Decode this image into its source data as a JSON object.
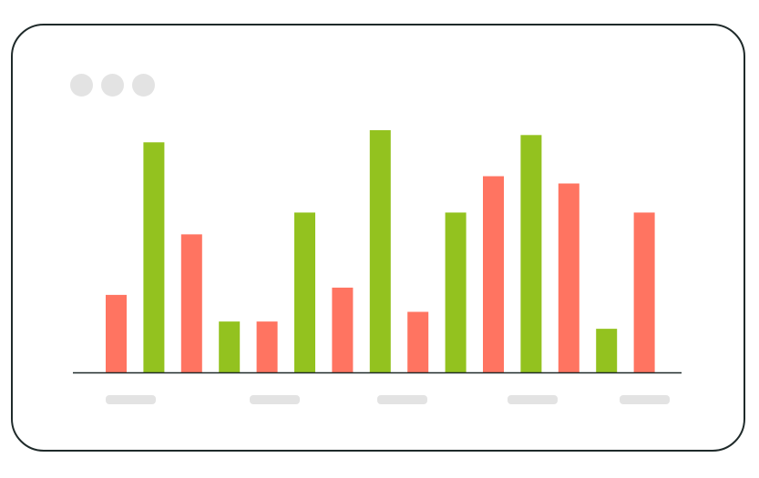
{
  "window": {
    "controls": [
      "dot",
      "dot",
      "dot"
    ]
  },
  "chart_data": {
    "type": "bar",
    "title": "",
    "xlabel": "",
    "ylabel": "",
    "ylim": [
      0,
      100
    ],
    "grid": false,
    "categories": [
      "",
      "",
      "",
      "",
      "",
      "",
      "",
      "",
      "",
      "",
      "",
      "",
      "",
      "",
      ""
    ],
    "values": [
      32,
      95,
      57,
      21,
      21,
      66,
      35,
      100,
      25,
      66,
      81,
      98,
      78,
      18,
      66
    ],
    "bar_colors": [
      "#FF7461",
      "#93C21F",
      "#FF7461",
      "#93C21F",
      "#FF7461",
      "#93C21F",
      "#FF7461",
      "#93C21F",
      "#FF7461",
      "#93C21F",
      "#FF7461",
      "#93C21F",
      "#FF7461",
      "#93C21F",
      "#FF7461"
    ],
    "x_tick_placeholders": 5,
    "colors": {
      "red": "#FF7461",
      "green": "#93C21F",
      "axis": "#1f2a2a",
      "placeholder": "#e3e3e3"
    }
  }
}
